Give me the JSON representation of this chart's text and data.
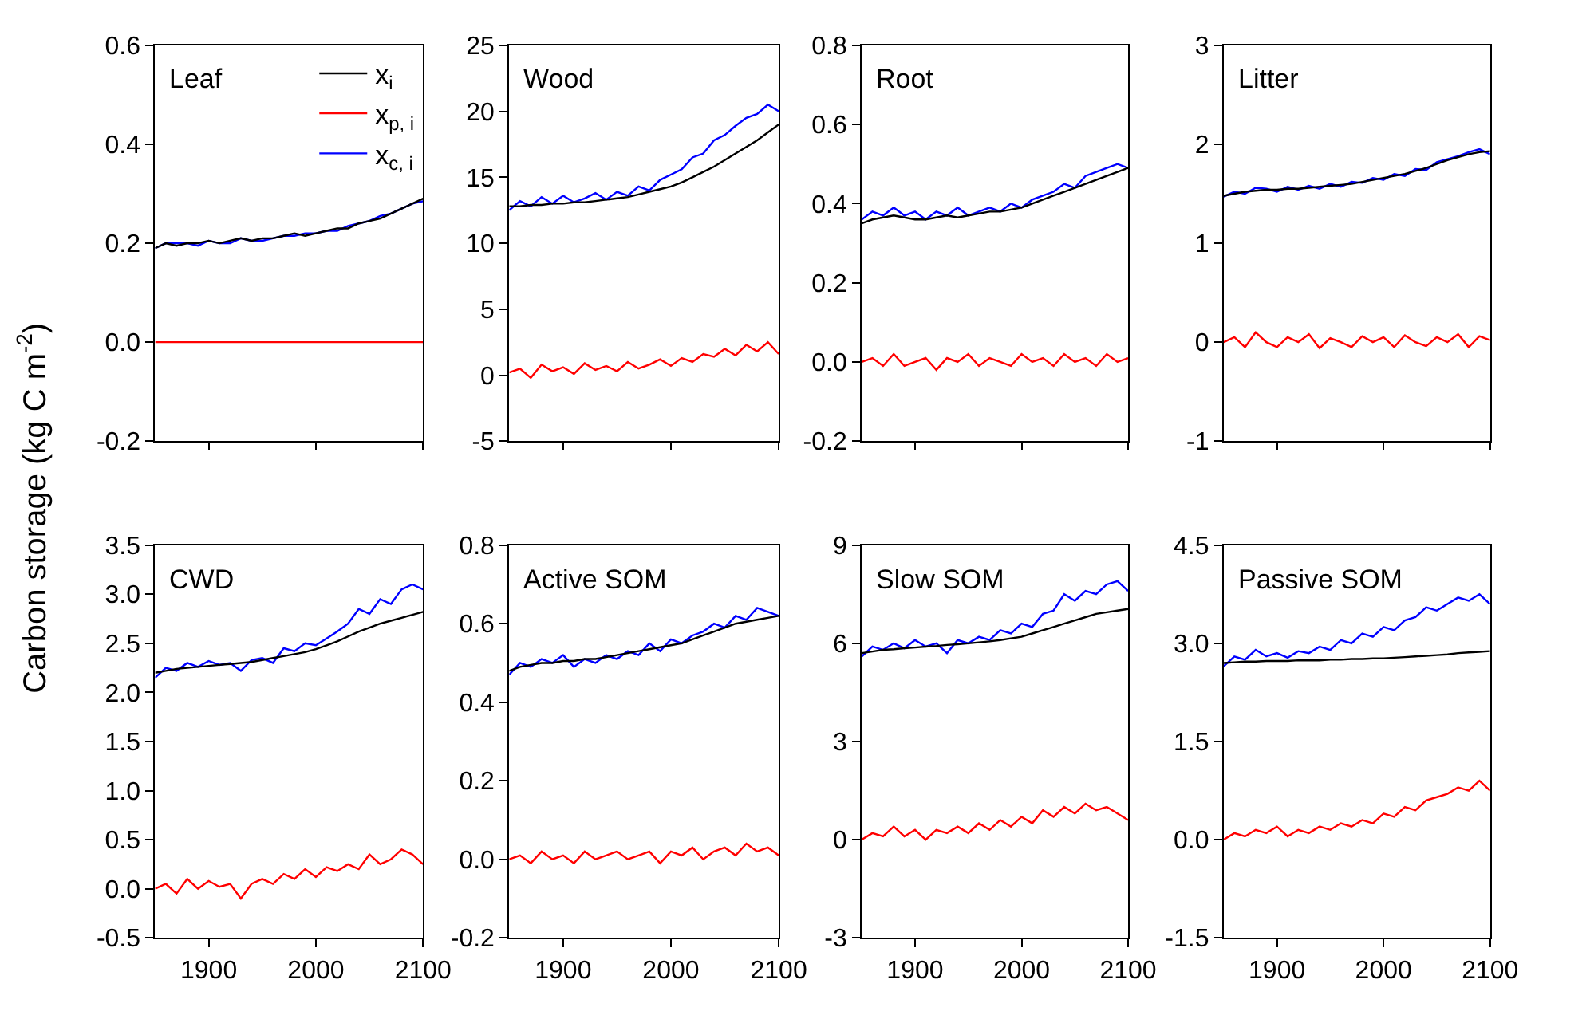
{
  "chart_data": [
    {
      "type": "line",
      "title": "Leaf",
      "ylabel": "Carbon storage (kg C m$^{-2}$)",
      "legend": "top right",
      "tick_labels": "y",
      "x": [
        1850,
        1860,
        1870,
        1880,
        1890,
        1900,
        1910,
        1920,
        1930,
        1940,
        1950,
        1960,
        1970,
        1980,
        1990,
        2000,
        2010,
        2020,
        2030,
        2040,
        2050,
        2060,
        2070,
        2080,
        2090,
        2100
      ],
      "xlim": [
        1850,
        2100
      ],
      "xticks": [
        {
          "value": 1900,
          "label": null
        },
        {
          "value": 2000,
          "label": null
        },
        {
          "value": 2100,
          "label": null
        }
      ],
      "ylim": [
        -0.2,
        0.6
      ],
      "yticks": [
        {
          "value": -0.2,
          "label": "-0.2"
        },
        {
          "value": 0,
          "label": "0.0"
        },
        {
          "value": 0.2,
          "label": "0.2"
        },
        {
          "value": 0.4,
          "label": "0.4"
        },
        {
          "value": 0.6,
          "label": "0.6"
        }
      ],
      "series": [
        {
          "name": "x$_{c, i}$",
          "color": "#0000ff",
          "values": [
            0.19,
            0.2,
            0.2,
            0.2,
            0.195,
            0.205,
            0.2,
            0.2,
            0.21,
            0.205,
            0.205,
            0.21,
            0.215,
            0.215,
            0.22,
            0.22,
            0.225,
            0.225,
            0.235,
            0.24,
            0.245,
            0.255,
            0.26,
            0.27,
            0.28,
            0.285
          ]
        },
        {
          "name": "x$_{p, i}$",
          "color": "#ff0000",
          "values": [
            0,
            0,
            0,
            0,
            0,
            0,
            0,
            0,
            0,
            0,
            0,
            0,
            0,
            0,
            0,
            0,
            0,
            0,
            0,
            0,
            0,
            0,
            0,
            0,
            0,
            0
          ]
        },
        {
          "name": "x$_{i}$",
          "color": "#000000",
          "values": [
            0.19,
            0.2,
            0.195,
            0.2,
            0.2,
            0.205,
            0.2,
            0.205,
            0.21,
            0.205,
            0.21,
            0.21,
            0.215,
            0.22,
            0.215,
            0.22,
            0.225,
            0.23,
            0.23,
            0.24,
            0.245,
            0.25,
            0.26,
            0.27,
            0.28,
            0.29
          ]
        }
      ]
    },
    {
      "type": "line",
      "title": "Wood",
      "tick_labels": "y",
      "x": [
        1850,
        1860,
        1870,
        1880,
        1890,
        1900,
        1910,
        1920,
        1930,
        1940,
        1950,
        1960,
        1970,
        1980,
        1990,
        2000,
        2010,
        2020,
        2030,
        2040,
        2050,
        2060,
        2070,
        2080,
        2090,
        2100
      ],
      "xlim": [
        1850,
        2100
      ],
      "xticks": [
        {
          "value": 1900,
          "label": null
        },
        {
          "value": 2000,
          "label": null
        },
        {
          "value": 2100,
          "label": null
        }
      ],
      "ylim": [
        -5,
        25
      ],
      "yticks": [
        -5,
        0,
        5,
        10,
        15,
        20,
        25
      ],
      "series": [
        {
          "color": "#0000ff",
          "values": [
            12.5,
            13.2,
            12.8,
            13.5,
            13.0,
            13.6,
            13.1,
            13.4,
            13.8,
            13.3,
            13.9,
            13.6,
            14.3,
            14.0,
            14.8,
            15.2,
            15.6,
            16.5,
            16.8,
            17.8,
            18.2,
            18.9,
            19.5,
            19.8,
            20.5,
            20.0
          ]
        },
        {
          "color": "#ff0000",
          "values": [
            0.2,
            0.5,
            -0.2,
            0.8,
            0.3,
            0.6,
            0.1,
            0.9,
            0.4,
            0.7,
            0.3,
            1.0,
            0.5,
            0.8,
            1.2,
            0.7,
            1.3,
            1.0,
            1.6,
            1.4,
            2.0,
            1.5,
            2.3,
            1.8,
            2.5,
            1.6
          ]
        },
        {
          "color": "#000000",
          "values": [
            12.8,
            12.8,
            12.9,
            12.9,
            13.0,
            13.0,
            13.1,
            13.1,
            13.2,
            13.3,
            13.4,
            13.5,
            13.7,
            13.9,
            14.1,
            14.3,
            14.6,
            15.0,
            15.4,
            15.8,
            16.3,
            16.8,
            17.3,
            17.8,
            18.4,
            19.0
          ]
        }
      ]
    },
    {
      "type": "line",
      "title": "Root",
      "tick_labels": "y",
      "x": [
        1850,
        1860,
        1870,
        1880,
        1890,
        1900,
        1910,
        1920,
        1930,
        1940,
        1950,
        1960,
        1970,
        1980,
        1990,
        2000,
        2010,
        2020,
        2030,
        2040,
        2050,
        2060,
        2070,
        2080,
        2090,
        2100
      ],
      "xlim": [
        1850,
        2100
      ],
      "xticks": [
        {
          "value": 1900,
          "label": null
        },
        {
          "value": 2000,
          "label": null
        },
        {
          "value": 2100,
          "label": null
        }
      ],
      "ylim": [
        -0.2,
        0.8
      ],
      "yticks": [
        {
          "value": -0.2,
          "label": "-0.2"
        },
        {
          "value": 0,
          "label": "0.0"
        },
        {
          "value": 0.2,
          "label": "0.2"
        },
        {
          "value": 0.4,
          "label": "0.4"
        },
        {
          "value": 0.6,
          "label": "0.6"
        },
        {
          "value": 0.8,
          "label": "0.8"
        }
      ],
      "series": [
        {
          "color": "#0000ff",
          "values": [
            0.36,
            0.38,
            0.37,
            0.39,
            0.37,
            0.38,
            0.36,
            0.38,
            0.37,
            0.39,
            0.37,
            0.38,
            0.39,
            0.38,
            0.4,
            0.39,
            0.41,
            0.42,
            0.43,
            0.45,
            0.44,
            0.47,
            0.48,
            0.49,
            0.5,
            0.49
          ]
        },
        {
          "color": "#ff0000",
          "values": [
            0.0,
            0.01,
            -0.01,
            0.02,
            -0.01,
            0.0,
            0.01,
            -0.02,
            0.01,
            0.0,
            0.02,
            -0.01,
            0.01,
            0.0,
            -0.01,
            0.02,
            0.0,
            0.01,
            -0.01,
            0.02,
            0.0,
            0.01,
            -0.01,
            0.02,
            0.0,
            0.01
          ]
        },
        {
          "color": "#000000",
          "values": [
            0.35,
            0.36,
            0.365,
            0.37,
            0.365,
            0.36,
            0.36,
            0.365,
            0.37,
            0.365,
            0.37,
            0.375,
            0.38,
            0.38,
            0.385,
            0.39,
            0.4,
            0.41,
            0.42,
            0.43,
            0.44,
            0.45,
            0.46,
            0.47,
            0.48,
            0.49
          ]
        }
      ]
    },
    {
      "type": "line",
      "title": "Litter",
      "tick_labels": "y",
      "x": [
        1850,
        1860,
        1870,
        1880,
        1890,
        1900,
        1910,
        1920,
        1930,
        1940,
        1950,
        1960,
        1970,
        1980,
        1990,
        2000,
        2010,
        2020,
        2030,
        2040,
        2050,
        2060,
        2070,
        2080,
        2090,
        2100
      ],
      "xlim": [
        1850,
        2100
      ],
      "xticks": [
        {
          "value": 1900,
          "label": null
        },
        {
          "value": 2000,
          "label": null
        },
        {
          "value": 2100,
          "label": null
        }
      ],
      "ylim": [
        -1,
        3
      ],
      "yticks": [
        -1,
        0,
        1,
        2,
        3
      ],
      "series": [
        {
          "color": "#0000ff",
          "values": [
            1.47,
            1.52,
            1.5,
            1.56,
            1.55,
            1.52,
            1.57,
            1.54,
            1.58,
            1.55,
            1.6,
            1.57,
            1.62,
            1.61,
            1.66,
            1.64,
            1.7,
            1.68,
            1.75,
            1.74,
            1.82,
            1.85,
            1.88,
            1.92,
            1.95,
            1.9
          ]
        },
        {
          "color": "#ff0000",
          "values": [
            0.0,
            0.05,
            -0.05,
            0.1,
            0.0,
            -0.05,
            0.05,
            0.0,
            0.08,
            -0.06,
            0.04,
            0.0,
            -0.05,
            0.06,
            0.0,
            0.05,
            -0.05,
            0.07,
            0.0,
            -0.04,
            0.05,
            0.0,
            0.08,
            -0.05,
            0.06,
            0.02
          ]
        },
        {
          "color": "#000000",
          "values": [
            1.48,
            1.5,
            1.52,
            1.53,
            1.54,
            1.54,
            1.55,
            1.55,
            1.56,
            1.57,
            1.58,
            1.59,
            1.6,
            1.62,
            1.64,
            1.66,
            1.68,
            1.7,
            1.73,
            1.76,
            1.8,
            1.84,
            1.87,
            1.9,
            1.92,
            1.93
          ]
        }
      ]
    },
    {
      "type": "line",
      "title": "CWD",
      "x": [
        1850,
        1860,
        1870,
        1880,
        1890,
        1900,
        1910,
        1920,
        1930,
        1940,
        1950,
        1960,
        1970,
        1980,
        1990,
        2000,
        2010,
        2020,
        2030,
        2040,
        2050,
        2060,
        2070,
        2080,
        2090,
        2100
      ],
      "xlim": [
        1850,
        2100
      ],
      "xticks": [
        1900,
        2000,
        2100
      ],
      "ylim": [
        -0.5,
        3.5
      ],
      "yticks": [
        {
          "value": -0.5,
          "label": "-0.5"
        },
        {
          "value": 0,
          "label": "0.0"
        },
        {
          "value": 0.5,
          "label": "0.5"
        },
        {
          "value": 1,
          "label": "1.0"
        },
        {
          "value": 1.5,
          "label": "1.5"
        },
        {
          "value": 2,
          "label": "2.0"
        },
        {
          "value": 2.5,
          "label": "2.5"
        },
        {
          "value": 3,
          "label": "3.0"
        },
        {
          "value": 3.5,
          "label": "3.5"
        }
      ],
      "series": [
        {
          "color": "#0000ff",
          "values": [
            2.15,
            2.25,
            2.22,
            2.3,
            2.26,
            2.32,
            2.28,
            2.3,
            2.22,
            2.33,
            2.35,
            2.3,
            2.45,
            2.42,
            2.5,
            2.48,
            2.55,
            2.62,
            2.7,
            2.85,
            2.8,
            2.95,
            2.9,
            3.05,
            3.1,
            3.05
          ]
        },
        {
          "color": "#ff0000",
          "values": [
            0.0,
            0.05,
            -0.05,
            0.1,
            0.0,
            0.08,
            0.02,
            0.05,
            -0.1,
            0.05,
            0.1,
            0.05,
            0.15,
            0.1,
            0.2,
            0.12,
            0.22,
            0.18,
            0.25,
            0.2,
            0.35,
            0.25,
            0.3,
            0.4,
            0.35,
            0.25
          ]
        },
        {
          "color": "#000000",
          "values": [
            2.2,
            2.22,
            2.24,
            2.25,
            2.26,
            2.27,
            2.28,
            2.29,
            2.3,
            2.31,
            2.33,
            2.35,
            2.37,
            2.39,
            2.41,
            2.44,
            2.48,
            2.52,
            2.57,
            2.62,
            2.66,
            2.7,
            2.73,
            2.76,
            2.79,
            2.82
          ]
        }
      ]
    },
    {
      "type": "line",
      "title": "Active SOM",
      "x": [
        1850,
        1860,
        1870,
        1880,
        1890,
        1900,
        1910,
        1920,
        1930,
        1940,
        1950,
        1960,
        1970,
        1980,
        1990,
        2000,
        2010,
        2020,
        2030,
        2040,
        2050,
        2060,
        2070,
        2080,
        2090,
        2100
      ],
      "xlim": [
        1850,
        2100
      ],
      "xticks": [
        1900,
        2000,
        2100
      ],
      "ylim": [
        -0.2,
        0.8
      ],
      "yticks": [
        {
          "value": -0.2,
          "label": "-0.2"
        },
        {
          "value": 0,
          "label": "0.0"
        },
        {
          "value": 0.2,
          "label": "0.2"
        },
        {
          "value": 0.4,
          "label": "0.4"
        },
        {
          "value": 0.6,
          "label": "0.6"
        },
        {
          "value": 0.8,
          "label": "0.8"
        }
      ],
      "series": [
        {
          "color": "#0000ff",
          "values": [
            0.47,
            0.5,
            0.49,
            0.51,
            0.5,
            0.52,
            0.49,
            0.51,
            0.5,
            0.52,
            0.51,
            0.53,
            0.52,
            0.55,
            0.53,
            0.56,
            0.55,
            0.57,
            0.58,
            0.6,
            0.59,
            0.62,
            0.61,
            0.64,
            0.63,
            0.62
          ]
        },
        {
          "color": "#ff0000",
          "values": [
            0.0,
            0.01,
            -0.01,
            0.02,
            0.0,
            0.01,
            -0.01,
            0.02,
            0.0,
            0.01,
            0.02,
            0.0,
            0.01,
            0.02,
            -0.01,
            0.02,
            0.01,
            0.03,
            0.0,
            0.02,
            0.03,
            0.01,
            0.04,
            0.02,
            0.03,
            0.01
          ]
        },
        {
          "color": "#000000",
          "values": [
            0.48,
            0.49,
            0.495,
            0.5,
            0.5,
            0.505,
            0.505,
            0.51,
            0.51,
            0.515,
            0.52,
            0.525,
            0.53,
            0.535,
            0.54,
            0.545,
            0.55,
            0.56,
            0.57,
            0.58,
            0.59,
            0.6,
            0.605,
            0.61,
            0.615,
            0.62
          ]
        }
      ]
    },
    {
      "type": "line",
      "title": "Slow SOM",
      "x": [
        1850,
        1860,
        1870,
        1880,
        1890,
        1900,
        1910,
        1920,
        1930,
        1940,
        1950,
        1960,
        1970,
        1980,
        1990,
        2000,
        2010,
        2020,
        2030,
        2040,
        2050,
        2060,
        2070,
        2080,
        2090,
        2100
      ],
      "xlim": [
        1850,
        2100
      ],
      "xticks": [
        1900,
        2000,
        2100
      ],
      "ylim": [
        -3,
        9
      ],
      "yticks": [
        -3,
        0,
        3,
        6,
        9
      ],
      "series": [
        {
          "color": "#0000ff",
          "values": [
            5.6,
            5.9,
            5.8,
            6.0,
            5.85,
            6.1,
            5.9,
            6.0,
            5.7,
            6.1,
            6.0,
            6.2,
            6.1,
            6.4,
            6.3,
            6.6,
            6.5,
            6.9,
            7.0,
            7.5,
            7.3,
            7.6,
            7.5,
            7.8,
            7.9,
            7.6
          ]
        },
        {
          "color": "#ff0000",
          "values": [
            0.0,
            0.2,
            0.1,
            0.4,
            0.1,
            0.3,
            0.0,
            0.3,
            0.2,
            0.4,
            0.2,
            0.5,
            0.3,
            0.6,
            0.4,
            0.7,
            0.5,
            0.9,
            0.7,
            1.0,
            0.8,
            1.1,
            0.9,
            1.0,
            0.8,
            0.6
          ]
        },
        {
          "color": "#000000",
          "values": [
            5.7,
            5.75,
            5.8,
            5.82,
            5.85,
            5.87,
            5.9,
            5.92,
            5.95,
            5.97,
            6.0,
            6.03,
            6.06,
            6.1,
            6.15,
            6.2,
            6.3,
            6.4,
            6.5,
            6.6,
            6.7,
            6.8,
            6.9,
            6.95,
            7.0,
            7.05
          ]
        }
      ]
    },
    {
      "type": "line",
      "title": "Passive SOM",
      "x": [
        1850,
        1860,
        1870,
        1880,
        1890,
        1900,
        1910,
        1920,
        1930,
        1940,
        1950,
        1960,
        1970,
        1980,
        1990,
        2000,
        2010,
        2020,
        2030,
        2040,
        2050,
        2060,
        2070,
        2080,
        2090,
        2100
      ],
      "xlim": [
        1850,
        2100
      ],
      "xticks": [
        1900,
        2000,
        2100
      ],
      "ylim": [
        -1.5,
        4.5
      ],
      "yticks": [
        {
          "value": -1.5,
          "label": "-1.5"
        },
        {
          "value": 0,
          "label": "0.0"
        },
        {
          "value": 1.5,
          "label": "1.5"
        },
        {
          "value": 3,
          "label": "3.0"
        },
        {
          "value": 4.5,
          "label": "4.5"
        }
      ],
      "series": [
        {
          "color": "#0000ff",
          "values": [
            2.65,
            2.8,
            2.75,
            2.9,
            2.8,
            2.85,
            2.78,
            2.88,
            2.85,
            2.95,
            2.9,
            3.05,
            3.0,
            3.15,
            3.1,
            3.25,
            3.2,
            3.35,
            3.4,
            3.55,
            3.5,
            3.6,
            3.7,
            3.65,
            3.75,
            3.6
          ]
        },
        {
          "color": "#ff0000",
          "values": [
            0.0,
            0.1,
            0.05,
            0.15,
            0.1,
            0.2,
            0.05,
            0.15,
            0.1,
            0.2,
            0.15,
            0.25,
            0.2,
            0.3,
            0.25,
            0.4,
            0.35,
            0.5,
            0.45,
            0.6,
            0.65,
            0.7,
            0.8,
            0.75,
            0.9,
            0.75
          ]
        },
        {
          "color": "#000000",
          "values": [
            2.7,
            2.71,
            2.72,
            2.72,
            2.73,
            2.73,
            2.73,
            2.74,
            2.74,
            2.74,
            2.75,
            2.75,
            2.76,
            2.76,
            2.77,
            2.77,
            2.78,
            2.79,
            2.8,
            2.81,
            2.82,
            2.83,
            2.85,
            2.86,
            2.87,
            2.88
          ]
        }
      ]
    }
  ]
}
